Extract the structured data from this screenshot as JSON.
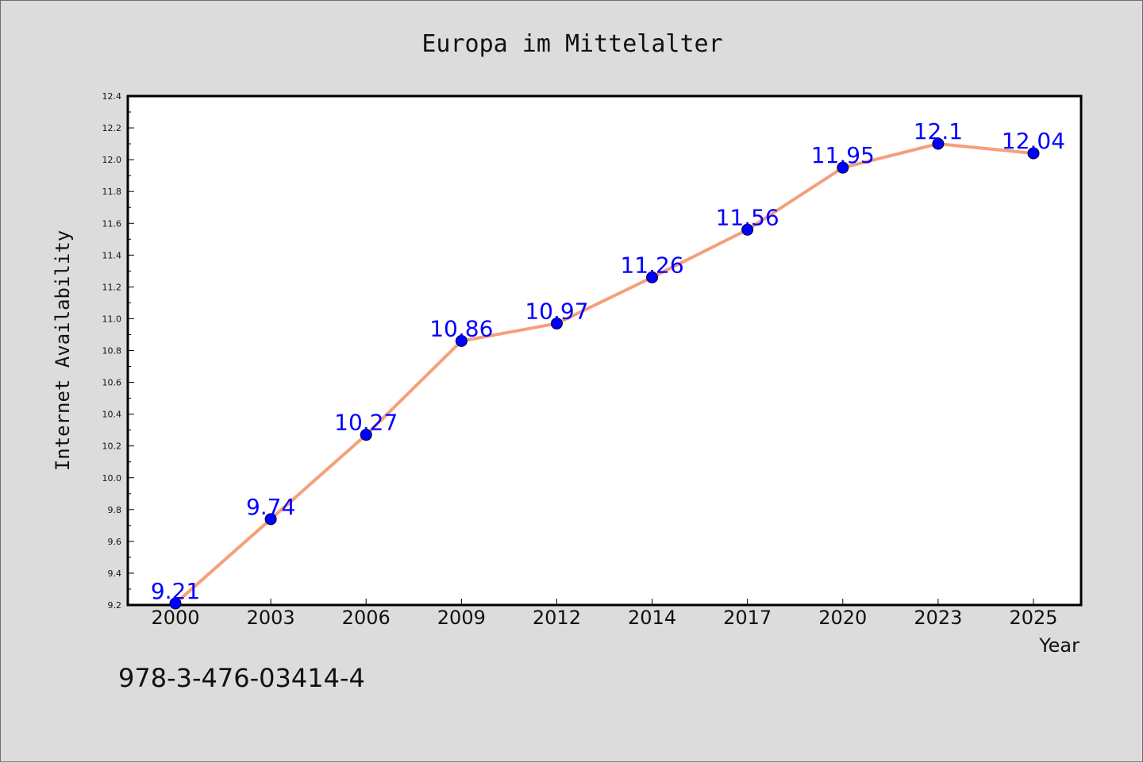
{
  "chart_data": {
    "type": "line",
    "title": "Europa im Mittelalter",
    "xlabel": "Year",
    "ylabel": "Internet Availability",
    "categories": [
      "2000",
      "2003",
      "2006",
      "2009",
      "2012",
      "2014",
      "2017",
      "2020",
      "2023",
      "2025"
    ],
    "series": [
      {
        "values": [
          9.21,
          9.74,
          10.27,
          10.86,
          10.97,
          11.26,
          11.56,
          11.95,
          12.1,
          12.04
        ],
        "labels": [
          "9.21",
          "9.74",
          "10.27",
          "10.86",
          "10.97",
          "11.26",
          "11.56",
          "11.95",
          "12.1",
          "12.04"
        ]
      }
    ],
    "ylim": [
      9.2,
      12.4
    ],
    "yticks": [
      "9.2",
      "9.4",
      "9.6",
      "9.8",
      "10.0",
      "10.2",
      "10.4",
      "10.6",
      "10.8",
      "11.0",
      "11.2",
      "11.4",
      "11.6",
      "11.8",
      "12.0",
      "12.2",
      "12.4"
    ],
    "grid": false,
    "legend": "none",
    "colors": {
      "line": "#f4a07a",
      "marker": "#0000ff",
      "label": "#0000ff",
      "background": "#dcdcdc",
      "plot_background": "#ffffff"
    }
  },
  "footer": {
    "isbn": "978-3-476-03414-4"
  }
}
